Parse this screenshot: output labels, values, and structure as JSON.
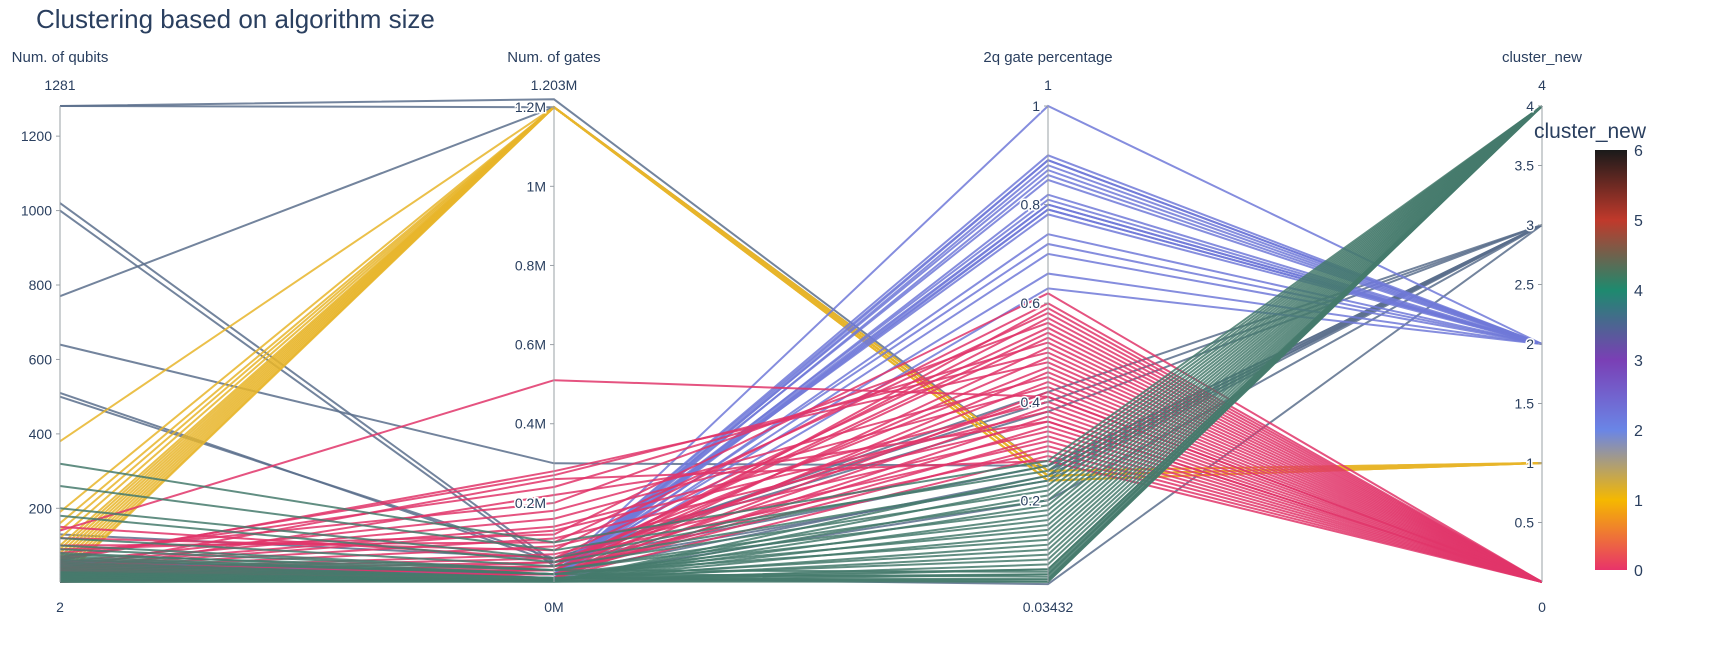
{
  "chart_data": {
    "type": "parallel_coordinates",
    "title": "Clustering based on algorithm size",
    "color_dimension": "cluster_new",
    "colorbar": {
      "title": "cluster_new",
      "range": [
        0,
        6
      ],
      "ticks": [
        "0",
        "1",
        "2",
        "3",
        "4",
        "5",
        "6"
      ],
      "stops": [
        {
          "v": 0.0,
          "color": "#e8336a"
        },
        {
          "v": 0.1667,
          "color": "#f5b800"
        },
        {
          "v": 0.3333,
          "color": "#6a85e6"
        },
        {
          "v": 0.5,
          "color": "#7a3fb5"
        },
        {
          "v": 0.6667,
          "color": "#1e8a6e"
        },
        {
          "v": 0.8333,
          "color": "#c0392b"
        },
        {
          "v": 1.0,
          "color": "#1a1a1a"
        }
      ]
    },
    "dimensions": [
      {
        "label": "Num. of qubits",
        "min_label": "2",
        "max_label": "1281",
        "range": [
          2,
          1281
        ],
        "ticks": [
          {
            "v": 200,
            "t": "200"
          },
          {
            "v": 400,
            "t": "400"
          },
          {
            "v": 600,
            "t": "600"
          },
          {
            "v": 800,
            "t": "800"
          },
          {
            "v": 1000,
            "t": "1000"
          },
          {
            "v": 1200,
            "t": "1200"
          }
        ]
      },
      {
        "label": "Num. of gates",
        "min_label": "0M",
        "max_label": "1.203M",
        "range": [
          0,
          1.203
        ],
        "ticks": [
          {
            "v": 0.2,
            "t": "0.2M"
          },
          {
            "v": 0.4,
            "t": "0.4M"
          },
          {
            "v": 0.6,
            "t": "0.6M"
          },
          {
            "v": 0.8,
            "t": "0.8M"
          },
          {
            "v": 1.0,
            "t": "1M"
          },
          {
            "v": 1.2,
            "t": "1.2M"
          }
        ]
      },
      {
        "label": "2q gate percentage",
        "min_label": "0.03432",
        "max_label": "1",
        "range": [
          0.03432,
          1
        ],
        "ticks": [
          {
            "v": 0.2,
            "t": "0.2"
          },
          {
            "v": 0.4,
            "t": "0.4"
          },
          {
            "v": 0.6,
            "t": "0.6"
          },
          {
            "v": 0.8,
            "t": "0.8"
          },
          {
            "v": 1.0,
            "t": "1"
          }
        ]
      },
      {
        "label": "cluster_new",
        "min_label": "0",
        "max_label": "4",
        "range": [
          0,
          4
        ],
        "ticks": [
          {
            "v": 0.5,
            "t": "0.5"
          },
          {
            "v": 1,
            "t": "1"
          },
          {
            "v": 1.5,
            "t": "1.5"
          },
          {
            "v": 2,
            "t": "2"
          },
          {
            "v": 2.5,
            "t": "2.5"
          },
          {
            "v": 3,
            "t": "3"
          },
          {
            "v": 3.5,
            "t": "3.5"
          },
          {
            "v": 4,
            "t": "4"
          }
        ]
      }
    ],
    "lines": [
      [
        1281,
        1.2,
        0.25,
        3
      ],
      [
        1281,
        1.22,
        0.26,
        3
      ],
      [
        1020,
        0.05,
        0.27,
        3
      ],
      [
        1000,
        0.04,
        0.24,
        3
      ],
      [
        770,
        1.2,
        0.26,
        3
      ],
      [
        640,
        0.3,
        0.27,
        3
      ],
      [
        510,
        0.05,
        0.42,
        3
      ],
      [
        500,
        0.06,
        0.4,
        3
      ],
      [
        130,
        0.06,
        0.38,
        3
      ],
      [
        60,
        0.01,
        0.2,
        3
      ],
      [
        50,
        0.02,
        0.25,
        3
      ],
      [
        30,
        0.01,
        0.03,
        3
      ],
      [
        380,
        1.2,
        0.25,
        1
      ],
      [
        190,
        1.2,
        0.25,
        1
      ],
      [
        160,
        1.2,
        0.24,
        1
      ],
      [
        140,
        1.2,
        0.25,
        1
      ],
      [
        120,
        1.2,
        0.26,
        1
      ],
      [
        100,
        1.2,
        0.25,
        1
      ],
      [
        90,
        1.2,
        0.25,
        1
      ],
      [
        80,
        1.2,
        0.24,
        1
      ],
      [
        70,
        1.2,
        0.25,
        1
      ],
      [
        60,
        1.2,
        0.25,
        1
      ],
      [
        50,
        1.2,
        0.26,
        1
      ],
      [
        40,
        1.2,
        0.25,
        1
      ],
      [
        30,
        1.2,
        0.25,
        1
      ],
      [
        20,
        1.2,
        0.24,
        1
      ],
      [
        10,
        1.2,
        0.25,
        1
      ],
      [
        5,
        1.2,
        0.25,
        1
      ],
      [
        60,
        0.02,
        1.0,
        2
      ],
      [
        55,
        0.02,
        0.9,
        2
      ],
      [
        50,
        0.01,
        0.89,
        2
      ],
      [
        45,
        0.02,
        0.87,
        2
      ],
      [
        40,
        0.01,
        0.86,
        2
      ],
      [
        35,
        0.02,
        0.85,
        2
      ],
      [
        30,
        0.01,
        0.82,
        2
      ],
      [
        28,
        0.02,
        0.81,
        2
      ],
      [
        26,
        0.01,
        0.8,
        2
      ],
      [
        24,
        0.02,
        0.8,
        2
      ],
      [
        22,
        0.01,
        0.79,
        2
      ],
      [
        20,
        0.02,
        0.78,
        2
      ],
      [
        18,
        0.01,
        0.74,
        2
      ],
      [
        16,
        0.02,
        0.72,
        2
      ],
      [
        14,
        0.01,
        0.7,
        2
      ],
      [
        12,
        0.02,
        0.66,
        2
      ],
      [
        10,
        0.01,
        0.63,
        2
      ],
      [
        8,
        0.02,
        0.89,
        2
      ],
      [
        6,
        0.01,
        0.88,
        2
      ],
      [
        4,
        0.02,
        0.79,
        2
      ],
      [
        150,
        0.06,
        0.55,
        0
      ],
      [
        140,
        0.51,
        0.41,
        0
      ],
      [
        120,
        0.08,
        0.6,
        0
      ],
      [
        100,
        0.1,
        0.58,
        0
      ],
      [
        90,
        0.12,
        0.62,
        0
      ],
      [
        80,
        0.2,
        0.56,
        0
      ],
      [
        70,
        0.24,
        0.52,
        0
      ],
      [
        65,
        0.27,
        0.5,
        0
      ],
      [
        60,
        0.28,
        0.48,
        0
      ],
      [
        55,
        0.18,
        0.45,
        0
      ],
      [
        50,
        0.16,
        0.43,
        0
      ],
      [
        45,
        0.14,
        0.4,
        0
      ],
      [
        40,
        0.13,
        0.38,
        0
      ],
      [
        38,
        0.11,
        0.36,
        0
      ],
      [
        36,
        0.09,
        0.34,
        0
      ],
      [
        34,
        0.07,
        0.32,
        0
      ],
      [
        32,
        0.06,
        0.3,
        0
      ],
      [
        30,
        0.05,
        0.47,
        0
      ],
      [
        28,
        0.04,
        0.53,
        0
      ],
      [
        26,
        0.03,
        0.57,
        0
      ],
      [
        24,
        0.03,
        0.44,
        0
      ],
      [
        22,
        0.02,
        0.39,
        0
      ],
      [
        20,
        0.02,
        0.35,
        0
      ],
      [
        18,
        0.02,
        0.31,
        0
      ],
      [
        16,
        0.01,
        0.29,
        0
      ],
      [
        14,
        0.01,
        0.46,
        0
      ],
      [
        12,
        0.01,
        0.51,
        0
      ],
      [
        10,
        0.01,
        0.59,
        0
      ],
      [
        8,
        0.01,
        0.42,
        0
      ],
      [
        6,
        0.01,
        0.37,
        0
      ],
      [
        5,
        0.02,
        0.33,
        0
      ],
      [
        4,
        0.03,
        0.49,
        0
      ],
      [
        3,
        0.04,
        0.54,
        0
      ],
      [
        2,
        0.05,
        0.41,
        0
      ],
      [
        25,
        0.22,
        0.36,
        0
      ],
      [
        35,
        0.26,
        0.28,
        0
      ],
      [
        320,
        0.1,
        0.28,
        4
      ],
      [
        260,
        0.08,
        0.26,
        4
      ],
      [
        200,
        0.06,
        0.27,
        4
      ],
      [
        180,
        0.05,
        0.24,
        4
      ],
      [
        120,
        0.04,
        0.22,
        4
      ],
      [
        100,
        0.03,
        0.2,
        4
      ],
      [
        90,
        0.03,
        0.18,
        4
      ],
      [
        80,
        0.02,
        0.16,
        4
      ],
      [
        70,
        0.02,
        0.14,
        4
      ],
      [
        60,
        0.02,
        0.12,
        4
      ],
      [
        55,
        0.01,
        0.1,
        4
      ],
      [
        50,
        0.01,
        0.08,
        4
      ],
      [
        45,
        0.01,
        0.06,
        4
      ],
      [
        40,
        0.01,
        0.05,
        4
      ],
      [
        35,
        0.01,
        0.04,
        4
      ],
      [
        30,
        0.01,
        0.035,
        4
      ],
      [
        28,
        0.005,
        0.09,
        4
      ],
      [
        26,
        0.005,
        0.11,
        4
      ],
      [
        24,
        0.005,
        0.13,
        4
      ],
      [
        22,
        0.004,
        0.15,
        4
      ],
      [
        20,
        0.004,
        0.17,
        4
      ],
      [
        18,
        0.003,
        0.19,
        4
      ],
      [
        16,
        0.003,
        0.21,
        4
      ],
      [
        14,
        0.003,
        0.23,
        4
      ],
      [
        12,
        0.002,
        0.25,
        4
      ],
      [
        10,
        0.002,
        0.07,
        4
      ],
      [
        8,
        0.002,
        0.06,
        4
      ],
      [
        6,
        0.001,
        0.05,
        4
      ],
      [
        4,
        0.001,
        0.04,
        4
      ],
      [
        2,
        0.001,
        0.035,
        4
      ],
      [
        65,
        0.02,
        0.045,
        4
      ],
      [
        75,
        0.03,
        0.055,
        4
      ]
    ]
  }
}
